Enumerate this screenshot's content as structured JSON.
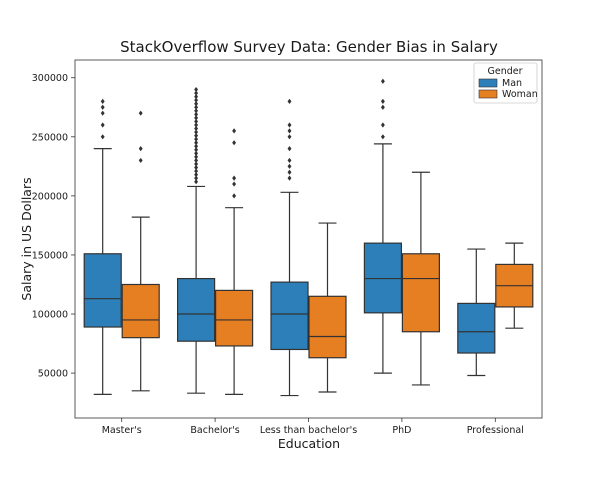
{
  "chart_data": {
    "type": "boxplot",
    "title": "StackOverflow Survey Data: Gender Bias in Salary",
    "xlabel": "Education",
    "ylabel": "Salary in US Dollars",
    "ylim": [
      12000,
      315000
    ],
    "yticks": [
      50000,
      100000,
      150000,
      200000,
      250000,
      300000
    ],
    "ytick_labels": [
      "50000",
      "100000",
      "150000",
      "200000",
      "250000",
      "300000"
    ],
    "categories": [
      "Master's",
      "Bachelor's",
      "Less than bachelor's",
      "PhD",
      "Professional"
    ],
    "legend": {
      "title": "Gender",
      "position": "top-right"
    },
    "series": [
      {
        "name": "Man",
        "color": "#2c7fb8",
        "boxes": [
          {
            "whisker_low": 32000,
            "q1": 89000,
            "median": 113000,
            "q3": 151000,
            "whisker_high": 240000,
            "outliers": [
              250000,
              260000,
              270000,
              275000,
              280000
            ]
          },
          {
            "whisker_low": 33000,
            "q1": 77000,
            "median": 100000,
            "q3": 130000,
            "whisker_high": 208000,
            "outliers": [
              212000,
              215000,
              218000,
              221000,
              224000,
              227000,
              230000,
              233000,
              236000,
              239000,
              242000,
              245000,
              248000,
              251000,
              254000,
              257000,
              260000,
              263000,
              266000,
              269000,
              272000,
              275000,
              278000,
              281000,
              284000,
              287000,
              290000
            ]
          },
          {
            "whisker_low": 31000,
            "q1": 70000,
            "median": 100000,
            "q3": 127000,
            "whisker_high": 203000,
            "outliers": [
              215000,
              220000,
              225000,
              230000,
              240000,
              250000,
              255000,
              260000,
              280000
            ]
          },
          {
            "whisker_low": 50000,
            "q1": 101000,
            "median": 130000,
            "q3": 160000,
            "whisker_high": 244000,
            "outliers": [
              250000,
              260000,
              275000,
              280000,
              297000
            ]
          },
          {
            "whisker_low": 48000,
            "q1": 67000,
            "median": 85000,
            "q3": 109000,
            "whisker_high": 155000,
            "outliers": []
          }
        ]
      },
      {
        "name": "Woman",
        "color": "#e67e22",
        "boxes": [
          {
            "whisker_low": 35000,
            "q1": 80000,
            "median": 95000,
            "q3": 125000,
            "whisker_high": 182000,
            "outliers": [
              230000,
              240000,
              270000
            ]
          },
          {
            "whisker_low": 32000,
            "q1": 73000,
            "median": 95000,
            "q3": 120000,
            "whisker_high": 190000,
            "outliers": [
              200000,
              210000,
              215000,
              245000,
              255000
            ]
          },
          {
            "whisker_low": 34000,
            "q1": 63000,
            "median": 81000,
            "q3": 115000,
            "whisker_high": 177000,
            "outliers": []
          },
          {
            "whisker_low": 40000,
            "q1": 85000,
            "median": 130000,
            "q3": 151000,
            "whisker_high": 220000,
            "outliers": []
          },
          {
            "whisker_low": 88000,
            "q1": 106000,
            "median": 124000,
            "q3": 142000,
            "whisker_high": 160000,
            "outliers": []
          }
        ]
      }
    ]
  }
}
